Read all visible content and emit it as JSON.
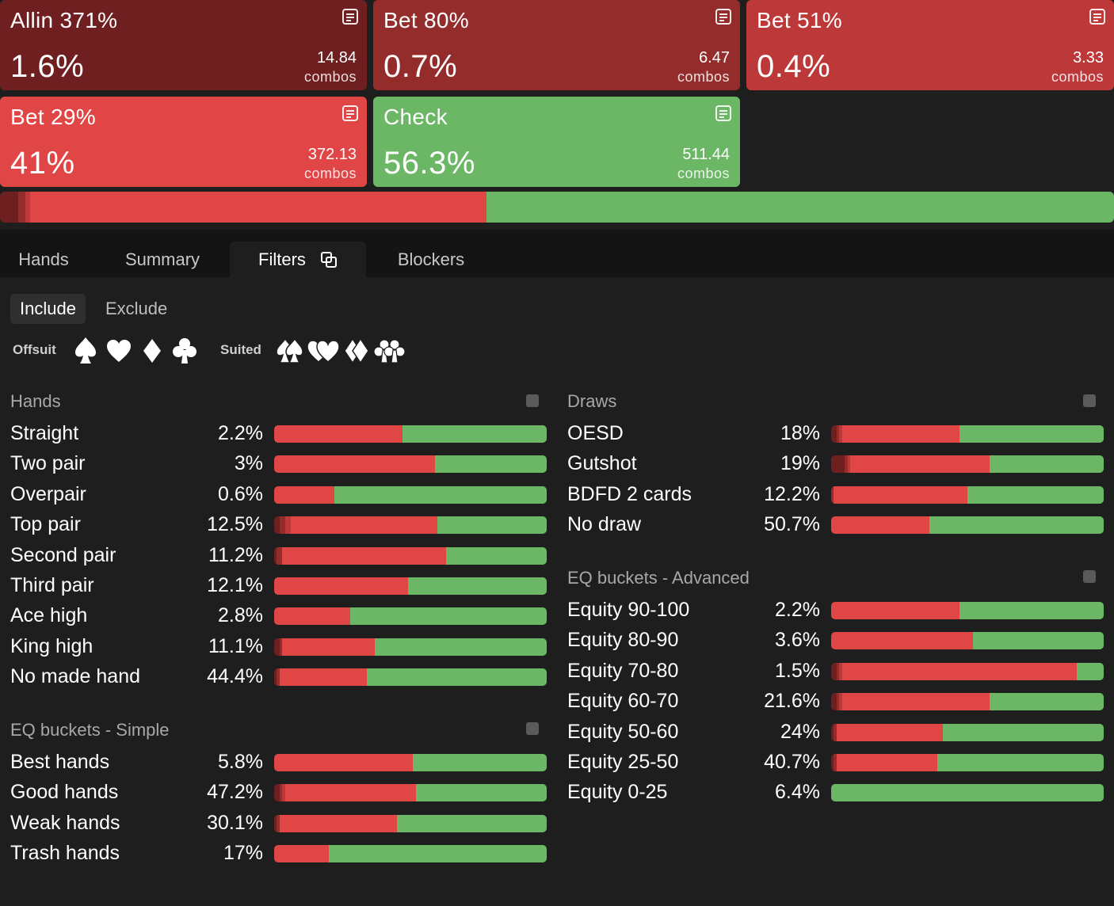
{
  "colors": {
    "allin": "#6f1f1f",
    "bet80": "#952c2c",
    "bet51": "#bd3838",
    "bet29": "#e04646",
    "check": "#6bb766",
    "background": "#1e1e1e"
  },
  "actions": [
    {
      "title": "Allin 371%",
      "pct": "1.6%",
      "combos": "14.84",
      "combos_label": "combos",
      "color": "#6f1f1f",
      "icon": "notes-icon"
    },
    {
      "title": "Bet 80%",
      "pct": "0.7%",
      "combos": "6.47",
      "combos_label": "combos",
      "color": "#952c2c",
      "icon": "notes-icon"
    },
    {
      "title": "Bet 51%",
      "pct": "0.4%",
      "combos": "3.33",
      "combos_label": "combos",
      "color": "#bd3838",
      "icon": "notes-icon"
    },
    {
      "title": "Bet 29%",
      "pct": "41%",
      "combos": "372.13",
      "combos_label": "combos",
      "color": "#e04646",
      "icon": "notes-icon"
    },
    {
      "title": "Check",
      "pct": "56.3%",
      "combos": "511.44",
      "combos_label": "combos",
      "color": "#6bb766",
      "icon": "notes-icon"
    }
  ],
  "distribution": [
    1.6,
    0.7,
    0.4,
    41,
    56.3
  ],
  "tabs": [
    {
      "label": "Hands"
    },
    {
      "label": "Summary"
    },
    {
      "label": "Filters",
      "active": true,
      "icon": "copy-icon"
    },
    {
      "label": "Blockers"
    }
  ],
  "filter_mode": {
    "include": "Include",
    "exclude": "Exclude",
    "selected": "Include"
  },
  "suits": {
    "offsuit_label": "Offsuit",
    "suited_label": "Suited",
    "offsuit_icons": [
      "spade-icon",
      "heart-icon",
      "diamond-icon",
      "club-icon"
    ],
    "suited_icons": [
      "double-spade-icon",
      "double-heart-icon",
      "double-diamond-icon",
      "double-club-icon"
    ]
  },
  "sections": {
    "hands": {
      "title": "Hands",
      "rows": [
        {
          "label": "Straight",
          "pct": "2.2%",
          "split": [
            0,
            0,
            0,
            47,
            53
          ]
        },
        {
          "label": "Two pair",
          "pct": "3%",
          "split": [
            0,
            0,
            0,
            59,
            41
          ]
        },
        {
          "label": "Overpair",
          "pct": "0.6%",
          "split": [
            0,
            0,
            0,
            22,
            78
          ]
        },
        {
          "label": "Top pair",
          "pct": "12.5%",
          "split": [
            2,
            2,
            2,
            54,
            40
          ]
        },
        {
          "label": "Second pair",
          "pct": "11.2%",
          "split": [
            1,
            2,
            0,
            60,
            37
          ]
        },
        {
          "label": "Third pair",
          "pct": "12.1%",
          "split": [
            0,
            0,
            0,
            49,
            51
          ]
        },
        {
          "label": "Ace high",
          "pct": "2.8%",
          "split": [
            0,
            0,
            0,
            28,
            72
          ]
        },
        {
          "label": "King high",
          "pct": "11.1%",
          "split": [
            2,
            1,
            0,
            34,
            63
          ]
        },
        {
          "label": "No made hand",
          "pct": "44.4%",
          "split": [
            1,
            1,
            0,
            32,
            66
          ]
        }
      ]
    },
    "eq_simple": {
      "title": "EQ buckets - Simple",
      "rows": [
        {
          "label": "Best hands",
          "pct": "5.8%",
          "split": [
            0,
            0,
            0,
            51,
            49
          ]
        },
        {
          "label": "Good hands",
          "pct": "47.2%",
          "split": [
            2,
            1,
            1,
            48,
            48
          ]
        },
        {
          "label": "Weak hands",
          "pct": "30.1%",
          "split": [
            1,
            1,
            0,
            43,
            55
          ]
        },
        {
          "label": "Trash hands",
          "pct": "17%",
          "split": [
            0,
            0,
            0,
            20,
            80
          ]
        }
      ]
    },
    "draws": {
      "title": "Draws",
      "rows": [
        {
          "label": "OESD",
          "pct": "18%",
          "split": [
            2,
            1,
            1,
            43,
            53
          ]
        },
        {
          "label": "Gutshot",
          "pct": "19%",
          "split": [
            5,
            1,
            1,
            51,
            42
          ]
        },
        {
          "label": "BDFD 2 cards",
          "pct": "12.2%",
          "split": [
            0,
            1,
            0,
            49,
            50
          ]
        },
        {
          "label": "No draw",
          "pct": "50.7%",
          "split": [
            0,
            0,
            0,
            36,
            64
          ]
        }
      ]
    },
    "eq_advanced": {
      "title": "EQ buckets - Advanced",
      "rows": [
        {
          "label": "Equity 90-100",
          "pct": "2.2%",
          "split": [
            0,
            0,
            0,
            47,
            53
          ]
        },
        {
          "label": "Equity 80-90",
          "pct": "3.6%",
          "split": [
            0,
            0,
            0,
            52,
            48
          ]
        },
        {
          "label": "Equity 70-80",
          "pct": "1.5%",
          "split": [
            2,
            1,
            1,
            86,
            10
          ]
        },
        {
          "label": "Equity 60-70",
          "pct": "21.6%",
          "split": [
            2,
            1,
            1,
            54,
            42
          ]
        },
        {
          "label": "Equity 50-60",
          "pct": "24%",
          "split": [
            1,
            1,
            0,
            39,
            59
          ]
        },
        {
          "label": "Equity 25-50",
          "pct": "40.7%",
          "split": [
            1,
            1,
            0,
            37,
            61
          ]
        },
        {
          "label": "Equity 0-25",
          "pct": "6.4%",
          "split": [
            0,
            0,
            0,
            0,
            100
          ]
        }
      ]
    }
  }
}
